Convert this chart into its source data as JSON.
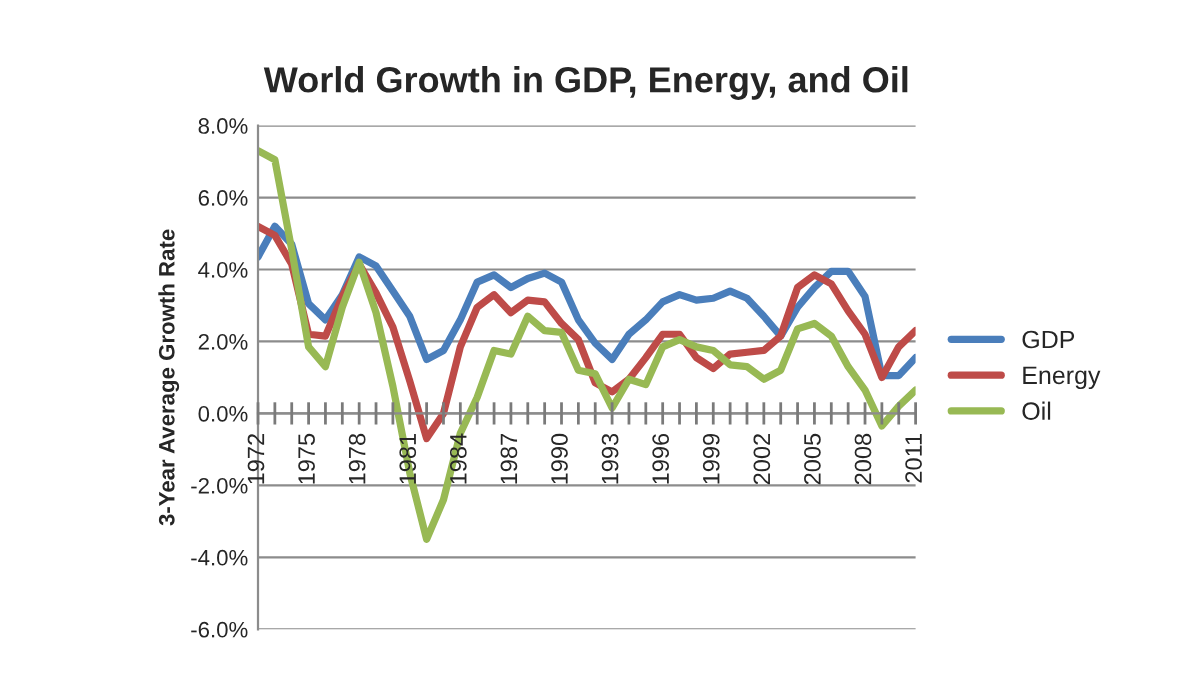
{
  "chart_data": {
    "type": "line",
    "title": "World Growth in GDP, Energy, and Oil",
    "ylabel": "3-Year Average Growth Rate",
    "x": [
      1972,
      1973,
      1974,
      1975,
      1976,
      1977,
      1978,
      1979,
      1980,
      1981,
      1982,
      1983,
      1984,
      1985,
      1986,
      1987,
      1988,
      1989,
      1990,
      1991,
      1992,
      1993,
      1994,
      1995,
      1996,
      1997,
      1998,
      1999,
      2000,
      2001,
      2002,
      2003,
      2004,
      2005,
      2006,
      2007,
      2008,
      2009,
      2010,
      2011
    ],
    "series": [
      {
        "name": "GDP",
        "color": "#4a7ebb",
        "values": [
          4.35,
          5.2,
          4.7,
          3.05,
          2.6,
          3.3,
          4.35,
          4.1,
          3.4,
          2.7,
          1.5,
          1.75,
          2.6,
          3.65,
          3.85,
          3.5,
          3.75,
          3.9,
          3.65,
          2.6,
          1.95,
          1.5,
          2.2,
          2.6,
          3.1,
          3.3,
          3.15,
          3.2,
          3.4,
          3.2,
          2.7,
          2.15,
          2.95,
          3.5,
          3.95,
          3.95,
          3.25,
          1.05,
          1.05,
          1.55
        ]
      },
      {
        "name": "Energy",
        "color": "#be4b48",
        "values": [
          5.2,
          4.95,
          4.15,
          2.2,
          2.15,
          3.25,
          4.15,
          3.35,
          2.4,
          0.9,
          -0.7,
          0.0,
          1.85,
          2.95,
          3.3,
          2.8,
          3.15,
          3.1,
          2.5,
          2.05,
          0.85,
          0.6,
          0.95,
          1.55,
          2.2,
          2.2,
          1.55,
          1.25,
          1.65,
          1.7,
          1.75,
          2.15,
          3.5,
          3.85,
          3.6,
          2.85,
          2.2,
          1.0,
          1.85,
          2.3
        ]
      },
      {
        "name": "Oil",
        "color": "#98b954",
        "values": [
          7.3,
          7.05,
          4.55,
          1.85,
          1.3,
          2.95,
          4.2,
          2.8,
          0.75,
          -1.65,
          -3.5,
          -2.4,
          -0.55,
          0.45,
          1.75,
          1.65,
          2.7,
          2.3,
          2.25,
          1.2,
          1.1,
          0.15,
          0.95,
          0.8,
          1.85,
          2.05,
          1.85,
          1.75,
          1.35,
          1.3,
          0.95,
          1.2,
          2.35,
          2.5,
          2.15,
          1.3,
          0.65,
          -0.35,
          0.2,
          0.65
        ]
      }
    ],
    "xlim": [
      1972,
      2011
    ],
    "xticks": [
      {
        "value": 1972,
        "label": "1972"
      },
      {
        "value": 1973,
        "label": null
      },
      {
        "value": 1974,
        "label": null
      },
      {
        "value": 1975,
        "label": "1975"
      },
      {
        "value": 1976,
        "label": null
      },
      {
        "value": 1977,
        "label": null
      },
      {
        "value": 1978,
        "label": "1978"
      },
      {
        "value": 1979,
        "label": null
      },
      {
        "value": 1980,
        "label": null
      },
      {
        "value": 1981,
        "label": "1981"
      },
      {
        "value": 1982,
        "label": null
      },
      {
        "value": 1983,
        "label": null
      },
      {
        "value": 1984,
        "label": "1984"
      },
      {
        "value": 1985,
        "label": null
      },
      {
        "value": 1986,
        "label": null
      },
      {
        "value": 1987,
        "label": "1987"
      },
      {
        "value": 1988,
        "label": null
      },
      {
        "value": 1989,
        "label": null
      },
      {
        "value": 1990,
        "label": "1990"
      },
      {
        "value": 1991,
        "label": null
      },
      {
        "value": 1992,
        "label": null
      },
      {
        "value": 1993,
        "label": "1993"
      },
      {
        "value": 1994,
        "label": null
      },
      {
        "value": 1995,
        "label": null
      },
      {
        "value": 1996,
        "label": "1996"
      },
      {
        "value": 1997,
        "label": null
      },
      {
        "value": 1998,
        "label": null
      },
      {
        "value": 1999,
        "label": "1999"
      },
      {
        "value": 2000,
        "label": null
      },
      {
        "value": 2001,
        "label": null
      },
      {
        "value": 2002,
        "label": "2002"
      },
      {
        "value": 2003,
        "label": null
      },
      {
        "value": 2004,
        "label": null
      },
      {
        "value": 2005,
        "label": "2005"
      },
      {
        "value": 2006,
        "label": null
      },
      {
        "value": 2007,
        "label": null
      },
      {
        "value": 2008,
        "label": "2008"
      },
      {
        "value": 2009,
        "label": null
      },
      {
        "value": 2010,
        "label": null
      },
      {
        "value": 2011,
        "label": "2011"
      }
    ],
    "ylim": [
      -6,
      8
    ],
    "yticks": [
      {
        "value": -6,
        "label": "-6.0%"
      },
      {
        "value": -4,
        "label": "-4.0%"
      },
      {
        "value": -2,
        "label": "-2.0%"
      },
      {
        "value": 0,
        "label": "0.0%"
      },
      {
        "value": 2,
        "label": "2.0%"
      },
      {
        "value": 4,
        "label": "4.0%"
      },
      {
        "value": 6,
        "label": "6.0%"
      },
      {
        "value": 8,
        "label": "8.0%"
      }
    ],
    "grid": "y",
    "legend": "right",
    "marker": "none",
    "line_style": "solid"
  }
}
